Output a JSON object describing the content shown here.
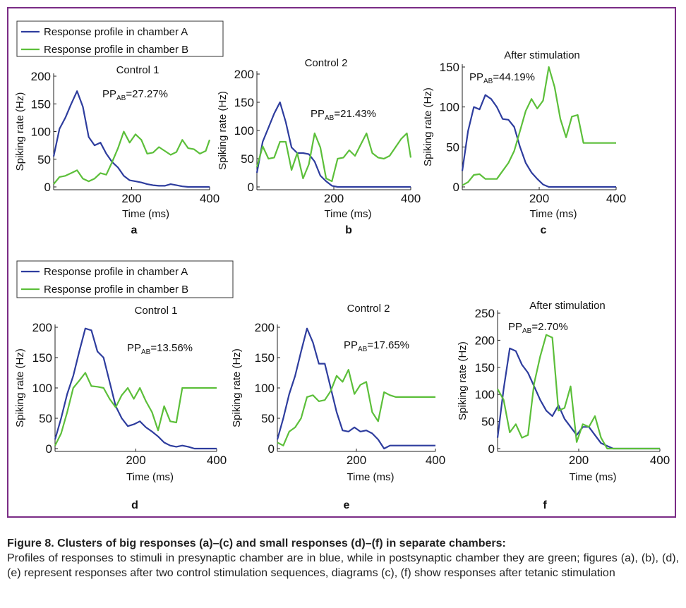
{
  "legend": {
    "series_a": "Response profile in chamber A",
    "series_b": "Response profile in chamber B"
  },
  "colors": {
    "series_a": "#2e3d9e",
    "series_b": "#5cbf3a",
    "frame": "#7a2b85"
  },
  "caption": {
    "title": "Figure 8. Clusters of big responses (a)–(c) and small responses (d)–(f) in separate chambers:",
    "body": "Profiles of responses to stimuli in presynaptic chamber are in blue, while in postsynaptic chamber they are green; figures (a), (b), (d), (e) represent responses after two control stimulation sequences, diagrams (c), (f) show responses after tetanic stimulation"
  },
  "chart_data": [
    {
      "type": "line",
      "panel_label": "a",
      "title": "Control 1",
      "annotation": {
        "prefix": "PP",
        "sub": "AB",
        "value": "=27.27%"
      },
      "xlabel": "Time (ms)",
      "ylabel": "Spiking rate (Hz)",
      "xlim": [
        0,
        400
      ],
      "ylim": [
        0,
        200
      ],
      "x_ticks": [
        200,
        400
      ],
      "y_ticks": [
        0,
        50,
        100,
        150,
        200
      ],
      "x": [
        0,
        15,
        30,
        45,
        60,
        75,
        90,
        105,
        120,
        135,
        150,
        165,
        180,
        195,
        210,
        225,
        240,
        255,
        270,
        285,
        300,
        315,
        330,
        345,
        360,
        375,
        390,
        400
      ],
      "series": [
        {
          "name": "Response profile in chamber A",
          "values": [
            55,
            105,
            125,
            150,
            173,
            145,
            90,
            75,
            80,
            60,
            45,
            35,
            20,
            12,
            10,
            8,
            5,
            3,
            2,
            2,
            5,
            3,
            1,
            0,
            0,
            0,
            0,
            0
          ]
        },
        {
          "name": "Response profile in chamber B",
          "values": [
            5,
            18,
            20,
            25,
            30,
            15,
            10,
            15,
            25,
            22,
            45,
            70,
            100,
            80,
            95,
            85,
            60,
            62,
            72,
            65,
            58,
            63,
            85,
            70,
            68,
            60,
            65,
            85
          ]
        }
      ]
    },
    {
      "type": "line",
      "panel_label": "b",
      "title": "Control 2",
      "annotation": {
        "prefix": "PP",
        "sub": "AB",
        "value": "=21.43%"
      },
      "xlabel": "Time (ms)",
      "ylabel": "Spiking rate (Hz)",
      "xlim": [
        0,
        400
      ],
      "ylim": [
        0,
        200
      ],
      "x_ticks": [
        200,
        400
      ],
      "y_ticks": [
        0,
        50,
        100,
        150,
        200
      ],
      "x": [
        0,
        15,
        30,
        45,
        60,
        75,
        90,
        105,
        120,
        135,
        150,
        165,
        180,
        195,
        210,
        225,
        240,
        255,
        270,
        285,
        300,
        315,
        330,
        345,
        360,
        375,
        390,
        400
      ],
      "series": [
        {
          "name": "Response profile in chamber A",
          "values": [
            25,
            80,
            105,
            130,
            150,
            115,
            70,
            60,
            60,
            58,
            45,
            20,
            10,
            2,
            0,
            0,
            0,
            0,
            0,
            0,
            0,
            0,
            0,
            0,
            0,
            0,
            0,
            0
          ]
        },
        {
          "name": "Response profile in chamber B",
          "values": [
            35,
            72,
            50,
            52,
            80,
            80,
            30,
            60,
            15,
            40,
            95,
            70,
            15,
            10,
            50,
            52,
            65,
            55,
            75,
            95,
            60,
            52,
            50,
            55,
            70,
            85,
            95,
            52
          ]
        }
      ]
    },
    {
      "type": "line",
      "panel_label": "c",
      "title": "After stimulation",
      "annotation": {
        "prefix": "PP",
        "sub": "AB",
        "value": "=44.19%"
      },
      "xlabel": "Time (ms)",
      "ylabel": "Spiking rate (Hz)",
      "xlim": [
        0,
        400
      ],
      "ylim": [
        0,
        150
      ],
      "x_ticks": [
        200,
        400
      ],
      "y_ticks": [
        0,
        50,
        100,
        150
      ],
      "x": [
        0,
        15,
        30,
        45,
        60,
        75,
        90,
        105,
        120,
        135,
        150,
        165,
        180,
        195,
        210,
        225,
        240,
        255,
        270,
        285,
        300,
        315,
        330,
        345,
        360,
        375,
        390,
        400
      ],
      "series": [
        {
          "name": "Response profile in chamber A",
          "values": [
            20,
            70,
            100,
            97,
            115,
            110,
            100,
            85,
            84,
            75,
            50,
            30,
            18,
            10,
            3,
            0,
            0,
            0,
            0,
            0,
            0,
            0,
            0,
            0,
            0,
            0,
            0,
            0
          ]
        },
        {
          "name": "Response profile in chamber B",
          "values": [
            2,
            6,
            15,
            16,
            10,
            10,
            10,
            20,
            30,
            45,
            70,
            95,
            110,
            98,
            108,
            150,
            125,
            85,
            62,
            88,
            90,
            55,
            55,
            55,
            55,
            55,
            55,
            55
          ]
        }
      ]
    },
    {
      "type": "line",
      "panel_label": "d",
      "title": "Control 1",
      "annotation": {
        "prefix": "PP",
        "sub": "AB",
        "value": "=13.56%"
      },
      "xlabel": "Time (ms)",
      "ylabel": "Spiking rate (Hz)",
      "xlim": [
        0,
        400
      ],
      "ylim": [
        0,
        200
      ],
      "x_ticks": [
        200,
        400
      ],
      "y_ticks": [
        0,
        50,
        100,
        150,
        200
      ],
      "x": [
        0,
        15,
        30,
        45,
        60,
        75,
        90,
        105,
        120,
        135,
        150,
        165,
        180,
        195,
        210,
        225,
        240,
        255,
        270,
        285,
        300,
        315,
        330,
        345,
        360,
        375,
        390,
        400
      ],
      "series": [
        {
          "name": "Response profile in chamber A",
          "values": [
            15,
            50,
            90,
            120,
            160,
            198,
            195,
            160,
            150,
            110,
            70,
            50,
            37,
            40,
            45,
            35,
            28,
            20,
            10,
            5,
            3,
            5,
            3,
            0,
            0,
            0,
            0,
            0
          ]
        },
        {
          "name": "Response profile in chamber B",
          "values": [
            5,
            25,
            60,
            100,
            112,
            125,
            103,
            102,
            100,
            82,
            68,
            88,
            100,
            82,
            100,
            78,
            60,
            30,
            70,
            45,
            43,
            100,
            100,
            100,
            100,
            100,
            100,
            100
          ]
        }
      ]
    },
    {
      "type": "line",
      "panel_label": "e",
      "title": "Control 2",
      "annotation": {
        "prefix": "PP",
        "sub": "AB",
        "value": "=17.65%"
      },
      "xlabel": "Time (ms)",
      "ylabel": "Spiking rate (Hz)",
      "xlim": [
        0,
        400
      ],
      "ylim": [
        0,
        200
      ],
      "x_ticks": [
        200,
        400
      ],
      "y_ticks": [
        0,
        50,
        100,
        150,
        200
      ],
      "x": [
        0,
        15,
        30,
        45,
        60,
        75,
        90,
        105,
        120,
        135,
        150,
        165,
        180,
        195,
        210,
        225,
        240,
        255,
        270,
        285,
        300,
        315,
        330,
        345,
        360,
        375,
        390,
        400
      ],
      "series": [
        {
          "name": "Response profile in chamber A",
          "values": [
            15,
            50,
            90,
            120,
            160,
            198,
            175,
            140,
            140,
            100,
            60,
            30,
            28,
            35,
            28,
            30,
            25,
            15,
            0,
            5,
            5,
            5,
            5,
            5,
            5,
            5,
            5,
            5
          ]
        },
        {
          "name": "Response profile in chamber B",
          "values": [
            10,
            5,
            28,
            35,
            50,
            85,
            88,
            78,
            80,
            95,
            120,
            110,
            130,
            90,
            105,
            110,
            60,
            45,
            93,
            88,
            85,
            85,
            85,
            85,
            85,
            85,
            85,
            85
          ]
        }
      ]
    },
    {
      "type": "line",
      "panel_label": "f",
      "title": "After stimulation",
      "annotation": {
        "prefix": "PP",
        "sub": "AB",
        "value": "=2.70%"
      },
      "xlabel": "Time (ms)",
      "ylabel": "Spiking rate (Hz)",
      "xlim": [
        0,
        400
      ],
      "ylim": [
        0,
        250
      ],
      "x_ticks": [
        200,
        400
      ],
      "y_ticks": [
        0,
        50,
        100,
        150,
        200,
        250
      ],
      "x": [
        0,
        15,
        30,
        45,
        60,
        75,
        90,
        105,
        120,
        135,
        150,
        165,
        180,
        195,
        210,
        225,
        240,
        255,
        270,
        285,
        300,
        315,
        330,
        345,
        360,
        375,
        390,
        400
      ],
      "series": [
        {
          "name": "Response profile in chamber A",
          "values": [
            20,
            110,
            185,
            180,
            155,
            140,
            115,
            90,
            70,
            60,
            80,
            55,
            40,
            25,
            40,
            40,
            25,
            10,
            5,
            0,
            0,
            0,
            0,
            0,
            0,
            0,
            0,
            0
          ]
        },
        {
          "name": "Response profile in chamber B",
          "values": [
            110,
            90,
            30,
            45,
            20,
            25,
            120,
            170,
            210,
            205,
            70,
            75,
            115,
            12,
            45,
            40,
            60,
            20,
            0,
            0,
            0,
            0,
            0,
            0,
            0,
            0,
            0,
            0
          ]
        }
      ]
    }
  ]
}
